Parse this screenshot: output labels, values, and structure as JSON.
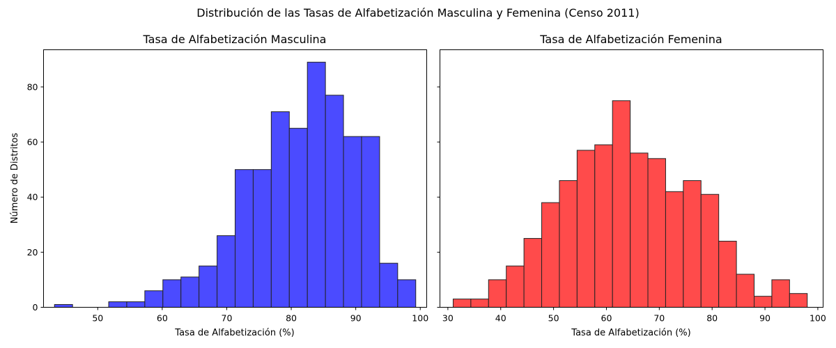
{
  "figure": {
    "suptitle": "Distribución de las Tasas de Alfabetización Masculina y Femenina (Censo 2011)"
  },
  "chart_data": [
    {
      "type": "bar",
      "histogram": true,
      "title": "Tasa de Alfabetización Masculina",
      "xlabel": "Tasa de Alfabetización (%)",
      "ylabel": "Número de Distritos",
      "xlim": [
        41.6,
        101.0
      ],
      "ylim": [
        0,
        93.5
      ],
      "xticks": [
        50,
        60,
        70,
        80,
        90,
        100
      ],
      "yticks": [
        0,
        20,
        40,
        60,
        80
      ],
      "grid": false,
      "color": "#4b4bff",
      "edgecolor": "#222222",
      "bin_edges": [
        43.3,
        46.1,
        48.9,
        51.7,
        54.5,
        57.3,
        60.1,
        62.9,
        65.7,
        68.5,
        71.3,
        74.1,
        76.9,
        79.7,
        82.5,
        85.3,
        88.1,
        90.9,
        93.7,
        96.5,
        99.3
      ],
      "counts": [
        1,
        0,
        0,
        2,
        2,
        6,
        10,
        11,
        15,
        26,
        50,
        50,
        71,
        65,
        89,
        77,
        62,
        62,
        16,
        10
      ]
    },
    {
      "type": "bar",
      "histogram": true,
      "title": "Tasa de Alfabetización Femenina",
      "xlabel": "Tasa de Alfabetización (%)",
      "ylabel": "",
      "xlim": [
        28.5,
        101.0
      ],
      "ylim": [
        0,
        93.5
      ],
      "xticks": [
        30,
        40,
        50,
        60,
        70,
        80,
        90,
        100
      ],
      "yticks": [
        0,
        20,
        40,
        60,
        80
      ],
      "grid": false,
      "color": "#ff4b4b",
      "edgecolor": "#222222",
      "bin_edges": [
        31.0,
        34.35,
        37.7,
        41.05,
        44.4,
        47.75,
        51.1,
        54.45,
        57.8,
        61.15,
        64.5,
        67.85,
        71.2,
        74.55,
        77.9,
        81.25,
        84.6,
        87.95,
        91.3,
        94.65,
        98.0
      ],
      "counts": [
        3,
        3,
        10,
        15,
        25,
        38,
        46,
        57,
        59,
        75,
        56,
        54,
        42,
        46,
        41,
        24,
        12,
        4,
        10,
        5
      ]
    }
  ]
}
